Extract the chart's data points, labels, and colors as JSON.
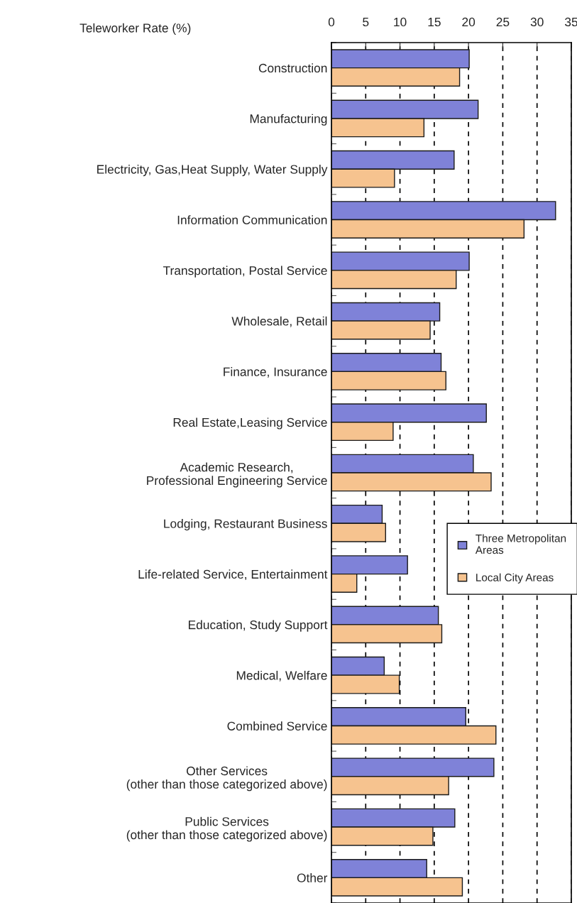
{
  "chart_data": {
    "type": "bar",
    "orientation": "horizontal",
    "xlabel": "Teleworker Rate (%)",
    "categories": [
      "Construction",
      "Manufacturing",
      "Electricity, Gas,Heat Supply, Water Supply",
      "Information Communication",
      "Transportation, Postal Service",
      "Wholesale, Retail",
      "Finance, Insurance",
      "Real Estate,Leasing Service",
      "Academic Research,\nProfessional Engineering Service",
      "Lodging, Restaurant Business",
      "Life-related Service, Entertainment",
      "Education, Study Support",
      "Medical, Welfare",
      "Combined Service",
      "Other Services\n(other than those categorized above)",
      "Public Services\n(other than those categorized above)",
      "Other"
    ],
    "series": [
      {
        "name": "Three Metropolitan\nAreas",
        "color": "#7f82d8",
        "values": [
          20.1,
          21.4,
          17.9,
          32.7,
          20.1,
          15.8,
          16.0,
          22.6,
          20.7,
          7.4,
          11.1,
          15.6,
          7.7,
          19.6,
          23.7,
          18.0,
          13.9
        ]
      },
      {
        "name": "Local City Areas",
        "color": "#f6c38f",
        "values": [
          18.7,
          13.5,
          9.2,
          28.1,
          18.2,
          14.4,
          16.7,
          9.0,
          23.3,
          7.9,
          3.7,
          16.1,
          9.9,
          24.0,
          17.1,
          14.8,
          19.1
        ]
      }
    ],
    "xlim": [
      0,
      35
    ],
    "xticks": [
      0,
      5,
      10,
      15,
      20,
      25,
      30,
      35
    ],
    "grid": "x",
    "legend": "right"
  }
}
